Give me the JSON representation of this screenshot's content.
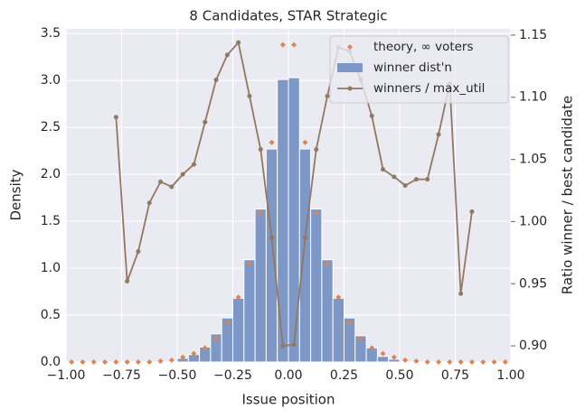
{
  "chart_data": {
    "type": "combo",
    "title": "8 Candidates, STAR Strategic",
    "xlabel": "Issue position",
    "ylabel": "Density",
    "y2label": "Ratio winner / best candidate",
    "grid": true,
    "legend": "upper right",
    "xlim": [
      -1,
      1
    ],
    "xticks": [
      {
        "value": -1,
        "label": "−1.00"
      },
      {
        "value": -0.75,
        "label": "−0.75"
      },
      {
        "value": -0.5,
        "label": "−0.50"
      },
      {
        "value": -0.25,
        "label": "−0.25"
      },
      {
        "value": 0,
        "label": "0.00"
      },
      {
        "value": 0.25,
        "label": "0.25"
      },
      {
        "value": 0.5,
        "label": "0.50"
      },
      {
        "value": 0.75,
        "label": "0.75"
      },
      {
        "value": 1,
        "label": "1.00"
      }
    ],
    "ylim": [
      0,
      3.55
    ],
    "yticks": [
      {
        "value": 0,
        "label": "0.0"
      },
      {
        "value": 0.5,
        "label": "0.5"
      },
      {
        "value": 1,
        "label": "1.0"
      },
      {
        "value": 1.5,
        "label": "1.5"
      },
      {
        "value": 2,
        "label": "2.0"
      },
      {
        "value": 2.5,
        "label": "2.5"
      },
      {
        "value": 3,
        "label": "3.0"
      },
      {
        "value": 3.5,
        "label": "3.5"
      }
    ],
    "y2lim": [
      0.887,
      1.155
    ],
    "y2ticks": [
      {
        "value": 0.9,
        "label": "0.90"
      },
      {
        "value": 0.95,
        "label": "0.95"
      },
      {
        "value": 1,
        "label": "1.00"
      },
      {
        "value": 1.05,
        "label": "1.05"
      },
      {
        "value": 1.1,
        "label": "1.10"
      },
      {
        "value": 1.15,
        "label": "1.15"
      }
    ],
    "y2color": "#937860",
    "series": [
      {
        "name": "theory, ∞ voters",
        "type": "scatter",
        "color": "#dd8452",
        "x": [
          -0.975,
          -0.925,
          -0.875,
          -0.825,
          -0.775,
          -0.725,
          -0.675,
          -0.625,
          -0.575,
          -0.525,
          -0.475,
          -0.425,
          -0.375,
          -0.325,
          -0.275,
          -0.225,
          -0.175,
          -0.125,
          -0.075,
          -0.025,
          0.025,
          0.075,
          0.125,
          0.175,
          0.225,
          0.275,
          0.325,
          0.375,
          0.425,
          0.475,
          0.525,
          0.575,
          0.625,
          0.675,
          0.725,
          0.775,
          0.825,
          0.875,
          0.925,
          0.975
        ],
        "values": [
          0,
          0,
          0,
          0,
          0,
          0,
          0,
          0,
          0.01,
          0.02,
          0.05,
          0.09,
          0.15,
          0.25,
          0.42,
          0.69,
          1.05,
          1.59,
          2.34,
          3.38,
          3.38,
          2.34,
          1.59,
          1.05,
          0.69,
          0.42,
          0.25,
          0.15,
          0.09,
          0.05,
          0.02,
          0.01,
          0,
          0,
          0,
          0,
          0,
          0,
          0,
          0
        ]
      },
      {
        "name": "winner dist'n",
        "type": "histogram",
        "color": "#7d97c6",
        "bins": [
          -0.5,
          -0.45,
          -0.4,
          -0.35,
          -0.3,
          -0.25,
          -0.2,
          -0.15,
          -0.1,
          -0.05,
          0,
          0.05,
          0.1,
          0.15,
          0.2,
          0.25,
          0.3,
          0.35,
          0.4,
          0.45,
          0.5
        ],
        "values": [
          0.04,
          0.08,
          0.16,
          0.3,
          0.47,
          0.68,
          1.09,
          1.63,
          2.27,
          3.01,
          3.03,
          2.27,
          1.63,
          1.09,
          0.68,
          0.47,
          0.28,
          0.15,
          0.06,
          0.03
        ]
      },
      {
        "name": "winners / max_util",
        "type": "line",
        "axis": "y2",
        "color": "#937860",
        "x": [
          -0.775,
          -0.725,
          -0.675,
          -0.625,
          -0.575,
          -0.525,
          -0.475,
          -0.425,
          -0.375,
          -0.325,
          -0.275,
          -0.225,
          -0.175,
          -0.125,
          -0.075,
          -0.025,
          0.025,
          0.075,
          0.125,
          0.175,
          0.225,
          0.275,
          0.325,
          0.375,
          0.425,
          0.475,
          0.525,
          0.575,
          0.625,
          0.675,
          0.725,
          0.775,
          0.825
        ],
        "values": [
          1.084,
          0.952,
          0.976,
          1.015,
          1.032,
          1.028,
          1.038,
          1.046,
          1.08,
          1.114,
          1.134,
          1.144,
          1.101,
          1.058,
          0.987,
          0.9,
          0.901,
          0.987,
          1.058,
          1.101,
          1.14,
          1.137,
          1.114,
          1.085,
          1.042,
          1.036,
          1.029,
          1.034,
          1.034,
          1.07,
          1.111,
          0.942,
          1.008
        ]
      }
    ]
  }
}
